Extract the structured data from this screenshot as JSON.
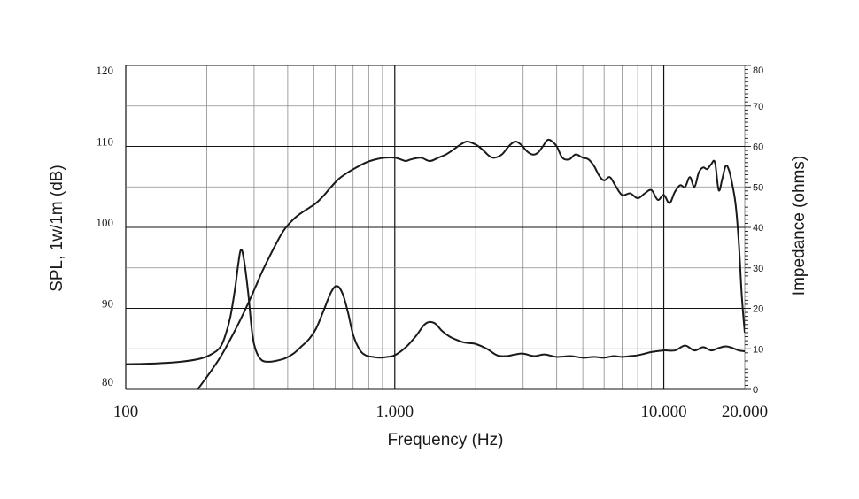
{
  "chart_data": {
    "type": "line",
    "xlabel": "Frequency (Hz)",
    "ylabel": "SPL, 1w/1m (dB)",
    "y2label": "Impedance (ohms)",
    "xscale": "log",
    "xlim": [
      100,
      20000
    ],
    "ylim": [
      80,
      120
    ],
    "y2lim": [
      0,
      80
    ],
    "x_tick_labels": [
      {
        "value": 100,
        "label": "100"
      },
      {
        "value": 1000,
        "label": "1.000"
      },
      {
        "value": 10000,
        "label": "10.000"
      },
      {
        "value": 20000,
        "label": "20.000"
      }
    ],
    "y_tick_labels": [
      {
        "value": 80,
        "label": "80"
      },
      {
        "value": 90,
        "label": "90"
      },
      {
        "value": 100,
        "label": "100"
      },
      {
        "value": 110,
        "label": "110"
      },
      {
        "value": 120,
        "label": "120"
      }
    ],
    "y2_tick_labels": [
      {
        "value": 0,
        "label": "0"
      },
      {
        "value": 10,
        "label": "10"
      },
      {
        "value": 20,
        "label": "20"
      },
      {
        "value": 30,
        "label": "30"
      },
      {
        "value": 40,
        "label": "40"
      },
      {
        "value": 50,
        "label": "50"
      },
      {
        "value": 60,
        "label": "60"
      },
      {
        "value": 70,
        "label": "70"
      },
      {
        "value": 80,
        "label": "80"
      }
    ],
    "grid": true,
    "series": [
      {
        "axis": "left",
        "x": [
          185,
          205,
          225,
          245,
          265,
          285,
          305,
          320,
          340,
          365,
          390,
          420,
          450,
          480,
          510,
          540,
          580,
          620,
          670,
          720,
          780,
          850,
          920,
          1000,
          1050,
          1100,
          1150,
          1250,
          1350,
          1450,
          1550,
          1650,
          1750,
          1850,
          1950,
          2050,
          2150,
          2250,
          2350,
          2500,
          2650,
          2800,
          2950,
          3100,
          3250,
          3400,
          3550,
          3700,
          3850,
          4000,
          4200,
          4450,
          4700,
          5000,
          5250,
          5500,
          5750,
          6000,
          6300,
          6600,
          7000,
          7500,
          8000,
          8500,
          9000,
          9500,
          10000,
          10500,
          11000,
          11500,
          12000,
          12500,
          13000,
          13500,
          14000,
          14500,
          15000,
          15500,
          16000,
          16500,
          17000,
          17500,
          18000,
          18500,
          19000,
          19500,
          20000
        ],
        "values": [
          80,
          82,
          84,
          86.2,
          88.4,
          90.6,
          92.8,
          94.4,
          96.2,
          98.2,
          99.8,
          101,
          101.8,
          102.4,
          103,
          103.8,
          105,
          106,
          106.8,
          107.4,
          108,
          108.4,
          108.6,
          108.6,
          108.4,
          108.2,
          108.4,
          108.6,
          108.2,
          108.6,
          109,
          109.6,
          110.2,
          110.6,
          110.4,
          110,
          109.4,
          108.8,
          108.6,
          109,
          110,
          110.6,
          110.2,
          109.4,
          109,
          109.2,
          110,
          110.8,
          110.6,
          110,
          108.6,
          108.4,
          109,
          108.6,
          108.4,
          107.6,
          106.4,
          105.8,
          106.2,
          105.2,
          104,
          104.2,
          103.6,
          104.2,
          104.6,
          103.4,
          104,
          103,
          104.4,
          105.2,
          105,
          106.2,
          105,
          106.8,
          107.4,
          107.2,
          107.8,
          108,
          104.6,
          106,
          107.6,
          107,
          105.2,
          102.8,
          98.2,
          91.5,
          87
        ]
      },
      {
        "axis": "right",
        "x": [
          100,
          130,
          160,
          190,
          210,
          225,
          235,
          245,
          255,
          262,
          268,
          275,
          285,
          295,
          305,
          320,
          340,
          360,
          390,
          420,
          450,
          480,
          510,
          545,
          580,
          610,
          640,
          670,
          700,
          740,
          780,
          830,
          880,
          940,
          1000,
          1100,
          1200,
          1300,
          1400,
          1500,
          1600,
          1700,
          1800,
          1900,
          2000,
          2200,
          2400,
          2600,
          2800,
          3000,
          3300,
          3600,
          4000,
          4500,
          5000,
          5500,
          6000,
          6500,
          7000,
          7500,
          8000,
          8500,
          9000,
          10000,
          11000,
          12000,
          13000,
          14000,
          15000,
          16000,
          17000,
          18000,
          19000,
          20000
        ],
        "values": [
          6.2,
          6.4,
          6.8,
          7.6,
          8.8,
          10.5,
          13.5,
          18,
          25,
          31,
          34.5,
          32,
          24,
          14,
          9.5,
          7.2,
          6.8,
          7,
          7.6,
          8.8,
          10.6,
          12.4,
          15,
          19.6,
          24,
          25.5,
          23.6,
          19,
          13.5,
          9.8,
          8.4,
          8,
          7.8,
          8,
          8.4,
          10.4,
          13.2,
          16.2,
          16.4,
          14.4,
          13,
          12.2,
          11.6,
          11.4,
          11.2,
          10,
          8.4,
          8.2,
          8.6,
          8.8,
          8.2,
          8.6,
          8,
          8.2,
          7.8,
          8,
          7.8,
          8.2,
          8,
          8.2,
          8.4,
          8.8,
          9.2,
          9.6,
          9.6,
          10.8,
          9.6,
          10.4,
          9.6,
          10.2,
          10.6,
          10.2,
          9.6,
          9.4
        ]
      }
    ]
  }
}
